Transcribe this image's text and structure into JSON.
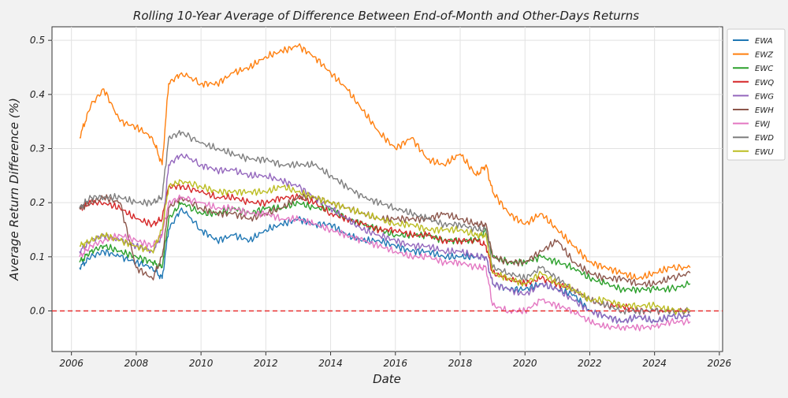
{
  "chart_data": {
    "type": "line",
    "title": "Rolling 10-Year Average of Difference Between End-of-Month and Other-Days Returns",
    "xlabel": "Date",
    "ylabel": "Average Return Difference (%)",
    "xlim": [
      2005.4,
      2026.1
    ],
    "ylim": [
      -0.075,
      0.525
    ],
    "xticks": [
      2006,
      2008,
      2010,
      2012,
      2014,
      2016,
      2018,
      2020,
      2022,
      2024,
      2026
    ],
    "xtick_labels": [
      "2006",
      "2008",
      "2010",
      "2012",
      "2014",
      "2016",
      "2018",
      "2020",
      "2022",
      "2024",
      "2026"
    ],
    "yticks": [
      0.0,
      0.1,
      0.2,
      0.3,
      0.4,
      0.5
    ],
    "ytick_labels": [
      "0.0",
      "0.1",
      "0.2",
      "0.3",
      "0.4",
      "0.5"
    ],
    "grid": true,
    "legend_position": "upper-right-outside",
    "reference_line": {
      "y": 0.0,
      "style": "dashed",
      "color": "#e83030"
    },
    "x": [
      2006.25,
      2006.6,
      2007,
      2007.5,
      2008,
      2008.5,
      2008.8,
      2009,
      2009.4,
      2010,
      2010.5,
      2011,
      2011.5,
      2012,
      2012.5,
      2013,
      2013.5,
      2014,
      2014.5,
      2015,
      2015.5,
      2016,
      2016.5,
      2017,
      2017.5,
      2018,
      2018.5,
      2018.8,
      2019,
      2019.5,
      2020,
      2020.5,
      2021,
      2021.5,
      2022,
      2022.5,
      2023,
      2023.5,
      2024,
      2024.5,
      2025.1
    ],
    "series": [
      {
        "name": "EWA",
        "color": "#1f77b4",
        "values": [
          0.08,
          0.1,
          0.11,
          0.1,
          0.09,
          0.08,
          0.06,
          0.15,
          0.19,
          0.15,
          0.13,
          0.14,
          0.13,
          0.15,
          0.16,
          0.17,
          0.16,
          0.16,
          0.14,
          0.13,
          0.13,
          0.12,
          0.11,
          0.11,
          0.1,
          0.1,
          0.1,
          0.1,
          0.05,
          0.04,
          0.04,
          0.05,
          0.04,
          0.03,
          0.0,
          -0.01,
          -0.02,
          -0.01,
          -0.02,
          -0.01,
          -0.01
        ]
      },
      {
        "name": "EWZ",
        "color": "#ff7f0e",
        "values": [
          0.32,
          0.38,
          0.41,
          0.35,
          0.34,
          0.32,
          0.27,
          0.42,
          0.44,
          0.42,
          0.42,
          0.44,
          0.45,
          0.47,
          0.48,
          0.49,
          0.47,
          0.44,
          0.41,
          0.37,
          0.33,
          0.3,
          0.32,
          0.28,
          0.27,
          0.29,
          0.25,
          0.27,
          0.22,
          0.18,
          0.16,
          0.18,
          0.15,
          0.12,
          0.09,
          0.08,
          0.07,
          0.06,
          0.07,
          0.08,
          0.08
        ]
      },
      {
        "name": "EWC",
        "color": "#2ca02c",
        "values": [
          0.09,
          0.11,
          0.12,
          0.11,
          0.1,
          0.09,
          0.08,
          0.17,
          0.2,
          0.18,
          0.18,
          0.19,
          0.18,
          0.19,
          0.19,
          0.2,
          0.19,
          0.19,
          0.17,
          0.16,
          0.15,
          0.14,
          0.14,
          0.14,
          0.13,
          0.13,
          0.13,
          0.15,
          0.1,
          0.09,
          0.09,
          0.1,
          0.09,
          0.08,
          0.06,
          0.05,
          0.04,
          0.04,
          0.04,
          0.04,
          0.05
        ]
      },
      {
        "name": "EWQ",
        "color": "#d62728",
        "values": [
          0.19,
          0.2,
          0.2,
          0.19,
          0.17,
          0.16,
          0.17,
          0.23,
          0.23,
          0.22,
          0.21,
          0.21,
          0.2,
          0.2,
          0.21,
          0.21,
          0.2,
          0.18,
          0.17,
          0.16,
          0.15,
          0.15,
          0.14,
          0.14,
          0.13,
          0.13,
          0.13,
          0.12,
          0.07,
          0.06,
          0.05,
          0.06,
          0.05,
          0.04,
          0.02,
          0.01,
          0.01,
          0.0,
          0.0,
          0.0,
          0.0
        ]
      },
      {
        "name": "EWG",
        "color": "#9467bd",
        "values": [
          0.11,
          0.13,
          0.14,
          0.13,
          0.12,
          0.11,
          0.14,
          0.27,
          0.29,
          0.27,
          0.26,
          0.26,
          0.25,
          0.25,
          0.24,
          0.23,
          0.21,
          0.19,
          0.17,
          0.15,
          0.14,
          0.13,
          0.12,
          0.12,
          0.11,
          0.11,
          0.1,
          0.1,
          0.05,
          0.04,
          0.03,
          0.05,
          0.04,
          0.02,
          0.0,
          -0.01,
          -0.02,
          -0.01,
          -0.02,
          -0.01,
          -0.01
        ]
      },
      {
        "name": "EWH",
        "color": "#8c564b",
        "values": [
          0.19,
          0.2,
          0.21,
          0.2,
          0.08,
          0.06,
          0.1,
          0.19,
          0.21,
          0.19,
          0.18,
          0.18,
          0.17,
          0.18,
          0.19,
          0.21,
          0.21,
          0.2,
          0.19,
          0.18,
          0.17,
          0.17,
          0.17,
          0.17,
          0.18,
          0.17,
          0.16,
          0.16,
          0.1,
          0.09,
          0.09,
          0.11,
          0.13,
          0.09,
          0.07,
          0.06,
          0.06,
          0.05,
          0.05,
          0.06,
          0.07
        ]
      },
      {
        "name": "EWJ",
        "color": "#e377c2",
        "values": [
          0.1,
          0.12,
          0.13,
          0.14,
          0.13,
          0.12,
          0.14,
          0.2,
          0.21,
          0.2,
          0.19,
          0.19,
          0.18,
          0.18,
          0.17,
          0.17,
          0.16,
          0.15,
          0.14,
          0.13,
          0.12,
          0.11,
          0.1,
          0.1,
          0.09,
          0.09,
          0.08,
          0.08,
          0.01,
          0.0,
          0.0,
          0.02,
          0.01,
          0.0,
          -0.02,
          -0.03,
          -0.03,
          -0.03,
          -0.03,
          -0.02,
          -0.02
        ]
      },
      {
        "name": "EWD",
        "color": "#7f7f7f",
        "values": [
          0.19,
          0.21,
          0.21,
          0.21,
          0.2,
          0.2,
          0.21,
          0.32,
          0.33,
          0.31,
          0.3,
          0.29,
          0.28,
          0.28,
          0.27,
          0.27,
          0.27,
          0.25,
          0.23,
          0.21,
          0.2,
          0.19,
          0.18,
          0.17,
          0.16,
          0.16,
          0.15,
          0.15,
          0.08,
          0.07,
          0.06,
          0.08,
          0.06,
          0.04,
          0.02,
          0.01,
          0.0,
          0.0,
          0.0,
          0.0,
          0.0
        ]
      },
      {
        "name": "EWU",
        "color": "#bcbd22",
        "values": [
          0.12,
          0.13,
          0.14,
          0.13,
          0.12,
          0.11,
          0.15,
          0.23,
          0.24,
          0.23,
          0.22,
          0.22,
          0.22,
          0.22,
          0.23,
          0.22,
          0.21,
          0.2,
          0.19,
          0.18,
          0.17,
          0.16,
          0.16,
          0.15,
          0.15,
          0.15,
          0.14,
          0.14,
          0.07,
          0.06,
          0.05,
          0.07,
          0.05,
          0.04,
          0.02,
          0.02,
          0.01,
          0.01,
          0.01,
          0.0,
          0.0
        ]
      }
    ]
  }
}
